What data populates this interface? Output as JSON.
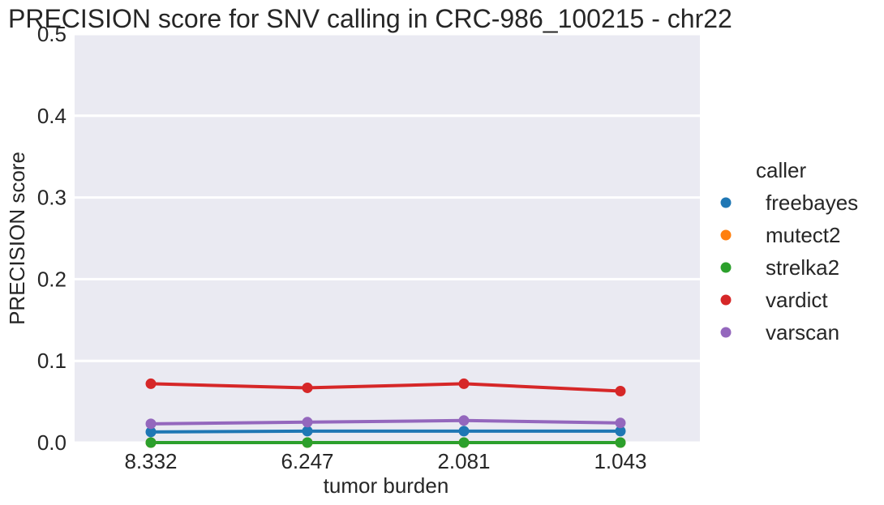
{
  "chart_data": {
    "type": "line",
    "title": "PRECISION score for SNV calling in CRC-986_100215 - chr22",
    "xlabel": "tumor burden",
    "ylabel": "PRECISION score",
    "categories": [
      "8.332",
      "6.247",
      "2.081",
      "1.043"
    ],
    "ylim": [
      0,
      0.5
    ],
    "yticks": [
      "0.0",
      "0.1",
      "0.2",
      "0.3",
      "0.4",
      "0.5"
    ],
    "grid": true,
    "legend": {
      "title": "caller",
      "placement": "right"
    },
    "series": [
      {
        "name": "freebayes",
        "color": "#1f77b4",
        "values": [
          0.013,
          0.014,
          0.014,
          0.014
        ]
      },
      {
        "name": "mutect2",
        "color": "#ff7f0e",
        "values": [
          0.0,
          0.0,
          0.0,
          0.0
        ]
      },
      {
        "name": "strelka2",
        "color": "#2ca02c",
        "values": [
          0.0,
          0.0,
          0.0,
          0.0
        ]
      },
      {
        "name": "vardict",
        "color": "#d62728",
        "values": [
          0.072,
          0.067,
          0.072,
          0.063
        ]
      },
      {
        "name": "varscan",
        "color": "#9467bd",
        "values": [
          0.023,
          0.025,
          0.027,
          0.024
        ]
      }
    ]
  }
}
